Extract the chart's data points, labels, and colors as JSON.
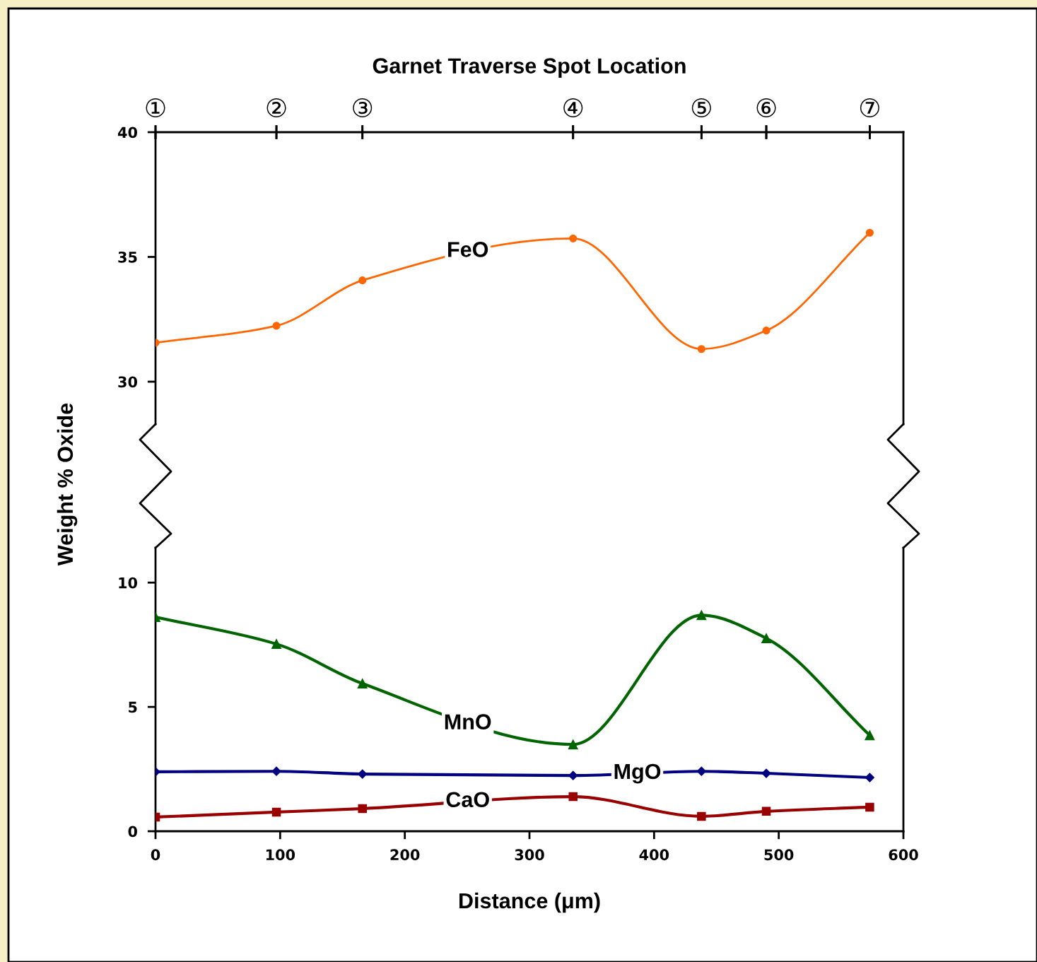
{
  "chart_data": [
    {
      "type": "line",
      "title": "Garnet Traverse Spot Location",
      "ylabel": "Weight % Oxide",
      "x": [
        0,
        97,
        166,
        335,
        438,
        490,
        573
      ],
      "series": [
        {
          "name": "FeO",
          "color": "#ff6600",
          "marker": "circle",
          "values": [
            31.56,
            32.24,
            34.06,
            35.74,
            31.31,
            32.05,
            35.97
          ]
        }
      ],
      "xlim": [
        0,
        600
      ],
      "ylim": [
        28.3,
        40
      ],
      "yticks": [
        30,
        35,
        40
      ],
      "annotations": [
        "①",
        "②",
        "③",
        "④",
        "⑤",
        "⑥",
        "⑦"
      ],
      "tick_labels": "y",
      "grid": false,
      "legend": false,
      "line_style": "solid"
    },
    {
      "type": "line",
      "xlabel": "Distance (μm)",
      "x": [
        0,
        97,
        166,
        335,
        438,
        490,
        573
      ],
      "series": [
        {
          "name": "MnO",
          "color": "#006400",
          "marker": "triangle",
          "values": [
            8.61,
            7.53,
            5.94,
            3.49,
            8.69,
            7.76,
            3.86
          ]
        },
        {
          "name": "MgO",
          "color": "#000080",
          "marker": "diamond",
          "values": [
            2.39,
            2.41,
            2.3,
            2.24,
            2.41,
            2.33,
            2.16
          ]
        },
        {
          "name": "CaO",
          "color": "#990000",
          "marker": "square",
          "values": [
            0.57,
            0.77,
            0.91,
            1.39,
            0.6,
            0.8,
            0.97
          ]
        }
      ],
      "xlim": [
        0,
        600
      ],
      "xticks": [
        0,
        100,
        200,
        300,
        400,
        500,
        600
      ],
      "ylim": [
        0,
        11.4
      ],
      "yticks": [
        0,
        5,
        10
      ],
      "grid": false,
      "legend": false,
      "line_style": "solid"
    }
  ]
}
